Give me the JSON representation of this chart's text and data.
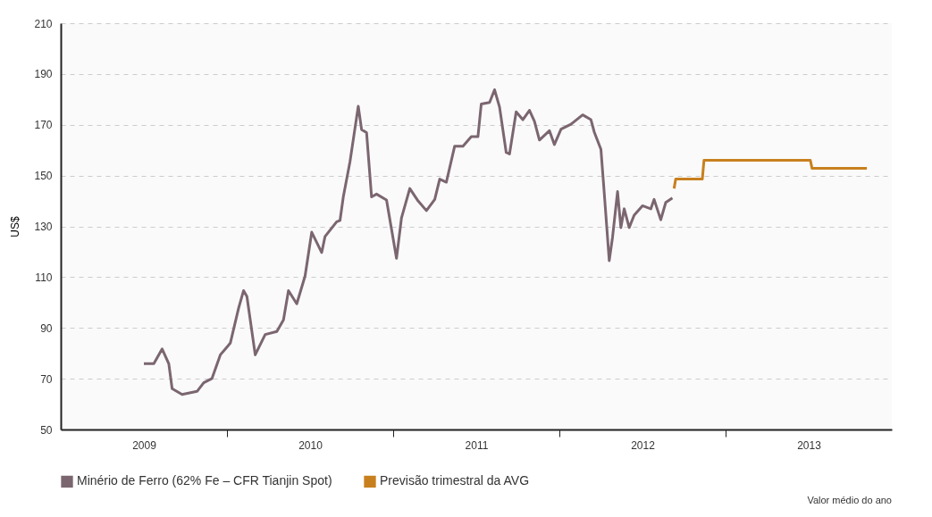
{
  "chart_data": {
    "type": "line",
    "ylabel": "US$",
    "xlim": [
      2009,
      2014
    ],
    "ylim": [
      50,
      210
    ],
    "xticks": [
      {
        "value": 2009.5,
        "label": "2009"
      },
      {
        "value": 2010,
        "label": null
      },
      {
        "value": 2010.5,
        "label": "2010"
      },
      {
        "value": 2011,
        "label": null
      },
      {
        "value": 2011.5,
        "label": "2011"
      },
      {
        "value": 2012,
        "label": null
      },
      {
        "value": 2012.5,
        "label": "2012"
      },
      {
        "value": 2013,
        "label": null
      },
      {
        "value": 2013.5,
        "label": "2013"
      }
    ],
    "yticks": [
      50,
      70,
      90,
      110,
      130,
      150,
      170,
      190,
      210
    ],
    "grid": "y",
    "legend": "bottom",
    "line_style": "solid",
    "marker": "none",
    "annotations": [
      "Valor médio do ano"
    ],
    "series": [
      {
        "name": "Minério de Ferro (62% Fe – CFR Tianjin Spot)",
        "color": "#7b6670",
        "x": [
          2009.5,
          2009.56,
          2009.61,
          2009.65,
          2009.67,
          2009.73,
          2009.82,
          2009.86,
          2009.91,
          2009.96,
          2010.02,
          2010.07,
          2010.1,
          2010.12,
          2010.17,
          2010.23,
          2010.3,
          2010.34,
          2010.37,
          2010.42,
          2010.47,
          2010.51,
          2010.57,
          2010.59,
          2010.66,
          2010.68,
          2010.7,
          2010.74,
          2010.79,
          2010.81,
          2010.84,
          2010.87,
          2010.9,
          2010.96,
          2011.02,
          2011.05,
          2011.1,
          2011.15,
          2011.2,
          2011.25,
          2011.28,
          2011.32,
          2011.37,
          2011.42,
          2011.47,
          2011.51,
          2011.53,
          2011.58,
          2011.61,
          2011.64,
          2011.68,
          2011.7,
          2011.74,
          2011.78,
          2011.82,
          2011.85,
          2011.88,
          2011.94,
          2011.97,
          2012.01,
          2012.07,
          2012.14,
          2012.19,
          2012.21,
          2012.25,
          2012.27,
          2012.3,
          2012.32,
          2012.35,
          2012.37,
          2012.39,
          2012.42,
          2012.45,
          2012.5,
          2012.55,
          2012.57,
          2012.61,
          2012.64,
          2012.68
        ],
        "values": [
          75.9,
          75.9,
          81.7,
          75.9,
          66.1,
          63.8,
          65.0,
          68.4,
          70.1,
          79.4,
          84.0,
          97.8,
          104.7,
          102.4,
          79.4,
          87.4,
          88.6,
          93.2,
          104.7,
          99.5,
          110.5,
          127.7,
          119.7,
          126.0,
          131.8,
          132.3,
          141.6,
          155.4,
          177.3,
          168.1,
          166.9,
          141.6,
          142.7,
          140.4,
          117.4,
          133.3,
          144.9,
          140.0,
          136.2,
          140.6,
          148.6,
          147.4,
          161.6,
          161.6,
          165.3,
          165.3,
          178.2,
          178.8,
          183.8,
          177.0,
          159.1,
          158.5,
          175.1,
          172.0,
          175.7,
          171.4,
          164.0,
          167.7,
          162.2,
          168.3,
          170.2,
          173.9,
          172.0,
          167.1,
          160.3,
          143.1,
          116.5,
          125.8,
          143.7,
          129.5,
          136.9,
          129.5,
          134.4,
          138.1,
          136.9,
          140.6,
          132.6,
          139.4,
          141.2
        ]
      },
      {
        "name": "Previsão trimestral da AVG",
        "color": "#c8801e",
        "x": [
          2012.69,
          2012.7,
          2012.86,
          2012.87,
          2013.51,
          2013.52,
          2013.85
        ],
        "values": [
          144.9,
          148.6,
          148.6,
          156.0,
          156.0,
          152.9,
          152.9
        ]
      }
    ]
  }
}
